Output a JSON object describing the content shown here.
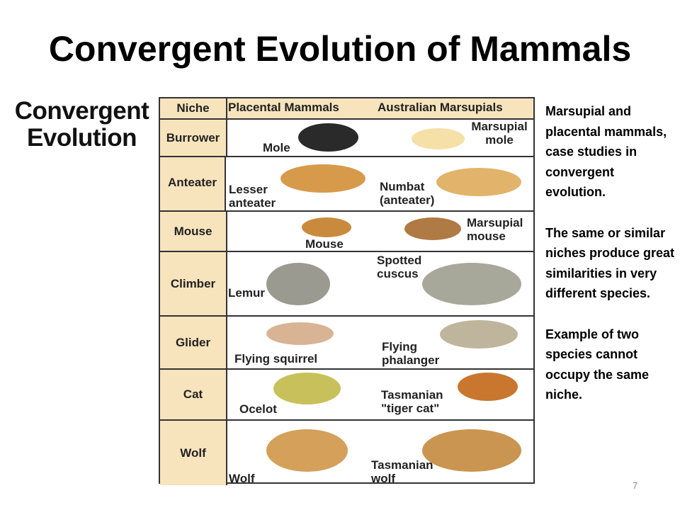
{
  "title": "Convergent Evolution of Mammals",
  "figure": {
    "heading": [
      "Convergent",
      "Evolution"
    ],
    "headers": {
      "niche": "Niche",
      "placental": "Placental Mammals",
      "marsupial": "Australian Marsupials"
    },
    "rows": [
      {
        "niche": "Burrower",
        "placental": "Mole",
        "marsupial": "Marsupial mole"
      },
      {
        "niche": "Anteater",
        "placental": "Lesser anteater",
        "marsupial": "Numbat (anteater)"
      },
      {
        "niche": "Mouse",
        "placental": "Mouse",
        "marsupial": "Marsupial mouse"
      },
      {
        "niche": "Climber",
        "placental": "Lemur",
        "marsupial": "Spotted cuscus"
      },
      {
        "niche": "Glider",
        "placental": "Flying squirrel",
        "marsupial": "Flying phalanger"
      },
      {
        "niche": "Cat",
        "placental": "Ocelot",
        "marsupial": "Tasmanian \"tiger cat\""
      },
      {
        "niche": "Wolf",
        "placental": "Wolf",
        "marsupial": "Tasmanian wolf"
      }
    ]
  },
  "notes": [
    "Marsupial and placental mammals, case studies in convergent evolution.",
    "The same or similar niches produce great similarities in very different species.",
    "Example of two species cannot occupy the same niche."
  ],
  "page_number": "7",
  "colors": {
    "niche_fill": "#f7e4bd"
  }
}
